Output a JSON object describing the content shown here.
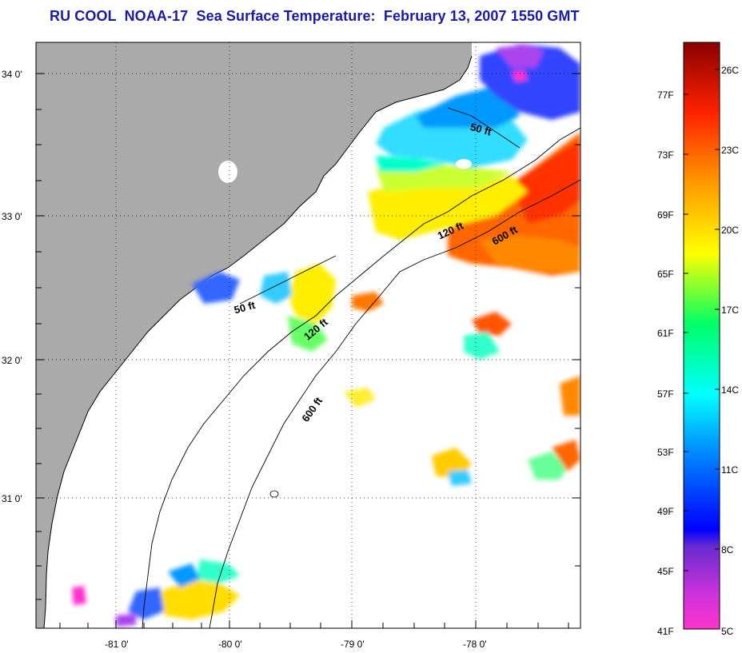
{
  "title": "RU COOL  NOAA-17  Sea Surface Temperature:  February 13, 2007 1550 GMT",
  "axes": {
    "lon_labels": [
      "-81 0'",
      "-80 0'",
      "-79 0'",
      "-78 0'"
    ],
    "lat_labels": [
      "34 0'",
      "33 0'",
      "32 0'",
      "31 0'"
    ]
  },
  "contours": {
    "c50a": "50 ft",
    "c50b": "50 ft",
    "c120a": "120 ft",
    "c120b": "120 ft",
    "c600a": "600 ft",
    "c600b": "600 ft"
  },
  "colorbar": {
    "fahrenheit": [
      "77F",
      "73F",
      "69F",
      "65F",
      "61F",
      "57F",
      "53F",
      "49F",
      "45F",
      "41F"
    ],
    "celsius": [
      "26C",
      "23C",
      "20C",
      "17C",
      "14C",
      "11C",
      "8C",
      "5C"
    ],
    "colors": [
      "#ff33cc",
      "#6a2bd0",
      "#0000ff",
      "#0088ff",
      "#00ffff",
      "#00ff66",
      "#ffff00",
      "#ff9900",
      "#ff2200",
      "#8b0000"
    ]
  },
  "colors": {
    "land": "#aaaaaa",
    "ocean": "#ffffff",
    "title": "#1a1aa8"
  }
}
